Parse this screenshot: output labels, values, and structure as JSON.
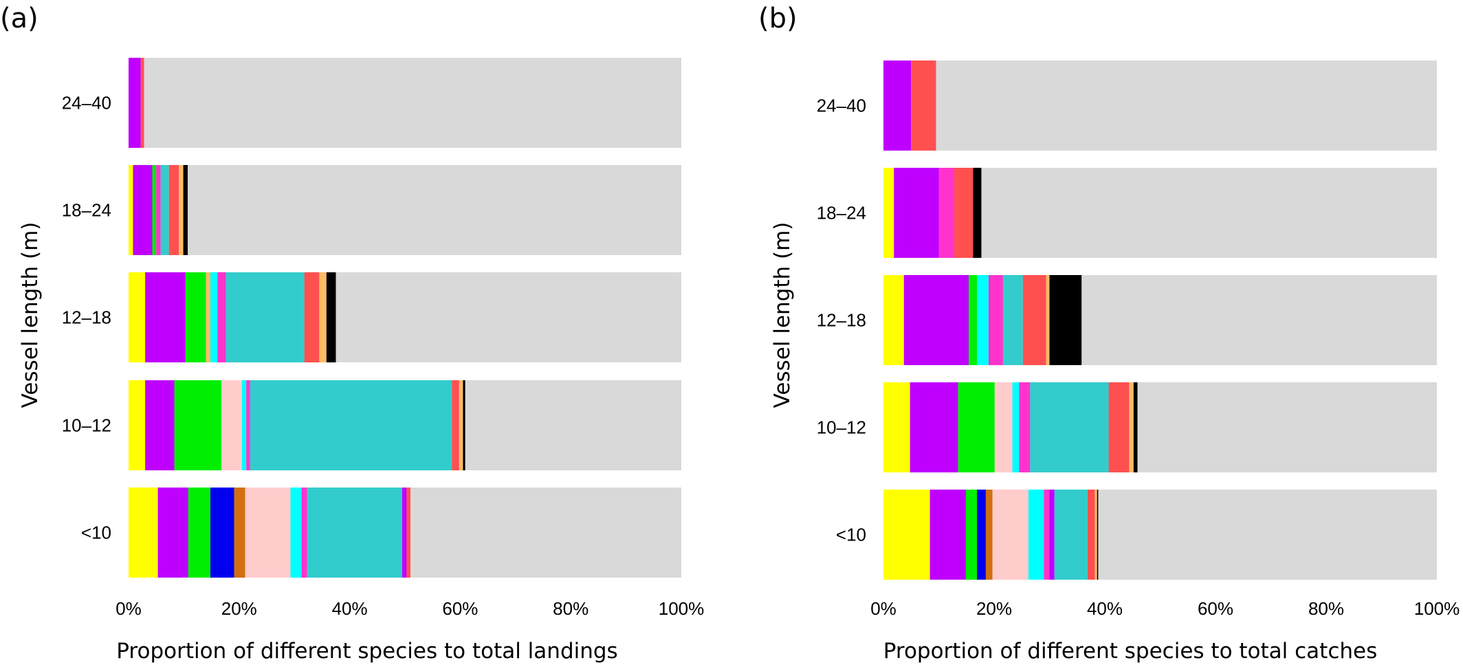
{
  "panels": [
    {
      "letter": "(a)",
      "xlabel": "Proportion of different species to total landings",
      "ylabel": "Vessel length (m)"
    },
    {
      "letter": "(b)",
      "xlabel": "Proportion of different species to total catches",
      "ylabel": "Vessel length (m)"
    }
  ],
  "chart_data": [
    {
      "type": "bar",
      "orientation": "horizontal",
      "stacked": true,
      "title": "",
      "xlabel": "Proportion of different species to total landings",
      "ylabel": "Vessel length (m)",
      "xlim": [
        0,
        100
      ],
      "xticks": [
        "0%",
        "20%",
        "40%",
        "60%",
        "80%",
        "100%"
      ],
      "categories": [
        "24–40",
        "18–24",
        "12–18",
        "10–12",
        "<10"
      ],
      "background_color": "#d9d9d9",
      "segments": [
        [
          {
            "color": "#bf00ff",
            "value": 2.2
          },
          {
            "color": "#ff5050",
            "value": 0.6
          }
        ],
        [
          {
            "color": "#ffff00",
            "value": 0.8
          },
          {
            "color": "#bf00ff",
            "value": 3.5
          },
          {
            "color": "#00ee00",
            "value": 0.7
          },
          {
            "color": "#ff33cc",
            "value": 0.8
          },
          {
            "color": "#33cccc",
            "value": 1.5
          },
          {
            "color": "#ff5050",
            "value": 1.8
          },
          {
            "color": "#ffbb66",
            "value": 0.8
          },
          {
            "color": "#000000",
            "value": 0.8
          }
        ],
        [
          {
            "color": "#ffff00",
            "value": 3.0
          },
          {
            "color": "#bf00ff",
            "value": 7.3
          },
          {
            "color": "#00ee00",
            "value": 3.7
          },
          {
            "color": "#ffbb66",
            "value": 0.8
          },
          {
            "color": "#00ffff",
            "value": 1.3
          },
          {
            "color": "#ff33cc",
            "value": 1.5
          },
          {
            "color": "#33cccc",
            "value": 14.2
          },
          {
            "color": "#ff5050",
            "value": 2.7
          },
          {
            "color": "#ffbb66",
            "value": 1.3
          },
          {
            "color": "#000000",
            "value": 1.7
          }
        ],
        [
          {
            "color": "#ffff00",
            "value": 3.0
          },
          {
            "color": "#bf00ff",
            "value": 5.3
          },
          {
            "color": "#00ee00",
            "value": 8.5
          },
          {
            "color": "#ffcccc",
            "value": 3.7
          },
          {
            "color": "#00ffff",
            "value": 0.8
          },
          {
            "color": "#ff33cc",
            "value": 0.7
          },
          {
            "color": "#33cccc",
            "value": 36.5
          },
          {
            "color": "#ff5050",
            "value": 1.3
          },
          {
            "color": "#ffbb66",
            "value": 0.7
          },
          {
            "color": "#000000",
            "value": 0.4
          }
        ],
        [
          {
            "color": "#ffff00",
            "value": 5.3
          },
          {
            "color": "#bf00ff",
            "value": 5.5
          },
          {
            "color": "#00ee00",
            "value": 4.0
          },
          {
            "color": "#0000ee",
            "value": 4.3
          },
          {
            "color": "#d26f10",
            "value": 2.0
          },
          {
            "color": "#ffcccc",
            "value": 8.2
          },
          {
            "color": "#00ffff",
            "value": 2.0
          },
          {
            "color": "#ff33cc",
            "value": 1.0
          },
          {
            "color": "#33cccc",
            "value": 17.2
          },
          {
            "color": "#bf00ff",
            "value": 0.8
          },
          {
            "color": "#ff5050",
            "value": 0.7
          }
        ]
      ]
    },
    {
      "type": "bar",
      "orientation": "horizontal",
      "stacked": true,
      "title": "",
      "xlabel": "Proportion of different species to total catches",
      "ylabel": "Vessel length (m)",
      "xlim": [
        0,
        100
      ],
      "xticks": [
        "0%",
        "20%",
        "40%",
        "60%",
        "80%",
        "100%"
      ],
      "categories": [
        "24–40",
        "18–24",
        "12–18",
        "10–12",
        "<10"
      ],
      "background_color": "#d9d9d9",
      "segments": [
        [
          {
            "color": "#bf00ff",
            "value": 5.0
          },
          {
            "color": "#ff5050",
            "value": 4.5
          }
        ],
        [
          {
            "color": "#ffff00",
            "value": 1.9
          },
          {
            "color": "#bf00ff",
            "value": 8.1
          },
          {
            "color": "#ff33cc",
            "value": 2.8
          },
          {
            "color": "#ff5050",
            "value": 3.4
          },
          {
            "color": "#000000",
            "value": 1.5
          }
        ],
        [
          {
            "color": "#ffff00",
            "value": 3.7
          },
          {
            "color": "#bf00ff",
            "value": 11.7
          },
          {
            "color": "#00ee00",
            "value": 1.5
          },
          {
            "color": "#00ffff",
            "value": 2.1
          },
          {
            "color": "#ff33cc",
            "value": 2.6
          },
          {
            "color": "#33cccc",
            "value": 3.6
          },
          {
            "color": "#ff5050",
            "value": 4.2
          },
          {
            "color": "#ffbb66",
            "value": 0.6
          },
          {
            "color": "#000000",
            "value": 5.8
          }
        ],
        [
          {
            "color": "#ffff00",
            "value": 4.8
          },
          {
            "color": "#bf00ff",
            "value": 8.7
          },
          {
            "color": "#00ee00",
            "value": 6.6
          },
          {
            "color": "#ffcccc",
            "value": 3.2
          },
          {
            "color": "#00ffff",
            "value": 1.2
          },
          {
            "color": "#ff33cc",
            "value": 2.0
          },
          {
            "color": "#33cccc",
            "value": 14.2
          },
          {
            "color": "#ff5050",
            "value": 3.7
          },
          {
            "color": "#ffbb66",
            "value": 0.8
          },
          {
            "color": "#000000",
            "value": 0.7
          }
        ],
        [
          {
            "color": "#ffff00",
            "value": 8.4
          },
          {
            "color": "#bf00ff",
            "value": 6.5
          },
          {
            "color": "#00ee00",
            "value": 2.0
          },
          {
            "color": "#0000ee",
            "value": 1.6
          },
          {
            "color": "#d26f10",
            "value": 1.2
          },
          {
            "color": "#ffcccc",
            "value": 6.5
          },
          {
            "color": "#00ffff",
            "value": 2.8
          },
          {
            "color": "#ff33cc",
            "value": 1.0
          },
          {
            "color": "#bf00ff",
            "value": 0.9
          },
          {
            "color": "#33cccc",
            "value": 6.0
          },
          {
            "color": "#ff5050",
            "value": 1.3
          },
          {
            "color": "#ffbb66",
            "value": 0.4
          },
          {
            "color": "#000000",
            "value": 0.2
          }
        ]
      ]
    }
  ]
}
